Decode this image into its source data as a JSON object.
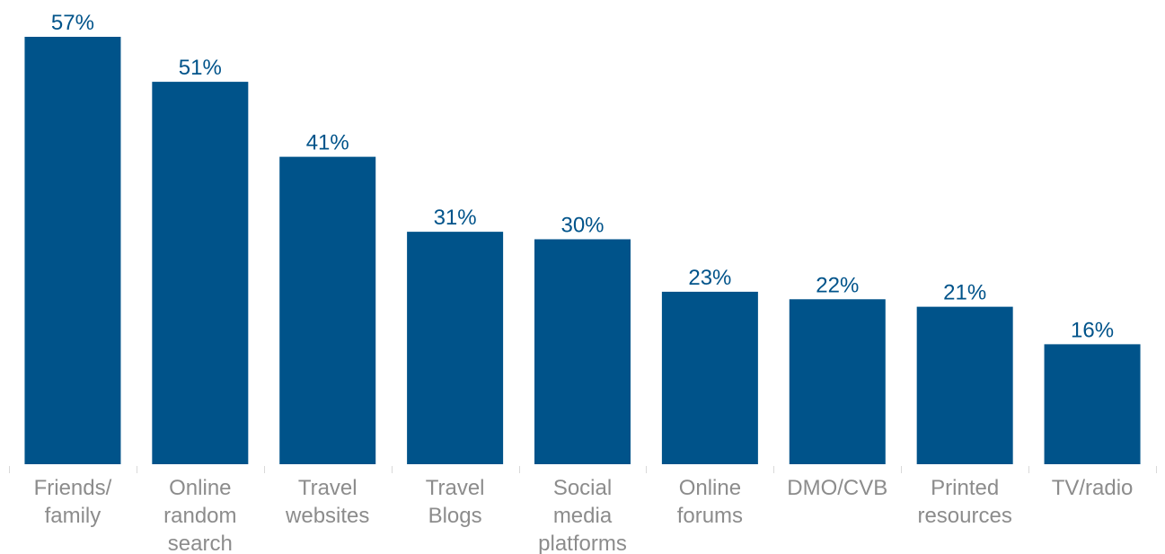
{
  "chart_data": {
    "type": "bar",
    "title": "",
    "xlabel": "",
    "ylabel": "",
    "ylim": [
      0,
      57
    ],
    "grid": false,
    "categories": [
      [
        "Friends/",
        "family"
      ],
      [
        "Online",
        "random",
        "search"
      ],
      [
        "Travel",
        "websites"
      ],
      [
        "Travel",
        "Blogs"
      ],
      [
        "Social",
        "media",
        "platforms"
      ],
      [
        "Online",
        "forums"
      ],
      [
        "DMO/CVB"
      ],
      [
        "Printed",
        "resources"
      ],
      [
        "TV/radio"
      ]
    ],
    "values": [
      57,
      51,
      41,
      31,
      30,
      23,
      22,
      21,
      16
    ],
    "value_labels": [
      "57%",
      "51%",
      "41%",
      "31%",
      "30%",
      "23%",
      "22%",
      "21%",
      "16%"
    ],
    "colors": {
      "bar": "#00538A",
      "value_label": "#00538A",
      "category_label": "#8C8C8C",
      "tick": "#D9D9D9"
    }
  }
}
